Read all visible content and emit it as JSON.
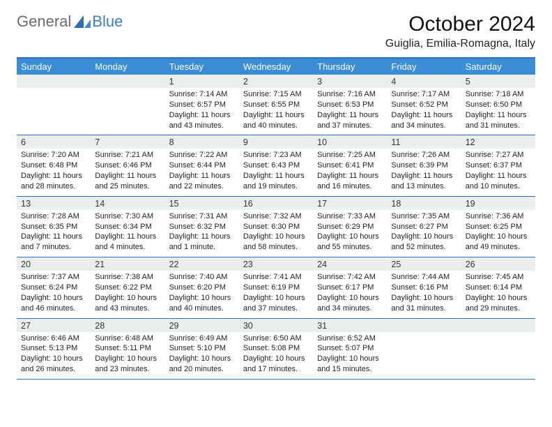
{
  "logo": {
    "text1": "General",
    "text2": "Blue"
  },
  "title": "October 2024",
  "location": "Guiglia, Emilia-Romagna, Italy",
  "colors": {
    "header_bg": "#3a8dd6",
    "border": "#2d6fb0",
    "daynum_bg": "#eceded",
    "text": "#222222",
    "logo_gray": "#6b6b6b",
    "logo_blue": "#3a7fc4"
  },
  "weekdays": [
    "Sunday",
    "Monday",
    "Tuesday",
    "Wednesday",
    "Thursday",
    "Friday",
    "Saturday"
  ],
  "weeks": [
    [
      {
        "n": "",
        "sr": "",
        "ss": "",
        "dl": ""
      },
      {
        "n": "",
        "sr": "",
        "ss": "",
        "dl": ""
      },
      {
        "n": "1",
        "sr": "Sunrise: 7:14 AM",
        "ss": "Sunset: 6:57 PM",
        "dl": "Daylight: 11 hours and 43 minutes."
      },
      {
        "n": "2",
        "sr": "Sunrise: 7:15 AM",
        "ss": "Sunset: 6:55 PM",
        "dl": "Daylight: 11 hours and 40 minutes."
      },
      {
        "n": "3",
        "sr": "Sunrise: 7:16 AM",
        "ss": "Sunset: 6:53 PM",
        "dl": "Daylight: 11 hours and 37 minutes."
      },
      {
        "n": "4",
        "sr": "Sunrise: 7:17 AM",
        "ss": "Sunset: 6:52 PM",
        "dl": "Daylight: 11 hours and 34 minutes."
      },
      {
        "n": "5",
        "sr": "Sunrise: 7:18 AM",
        "ss": "Sunset: 6:50 PM",
        "dl": "Daylight: 11 hours and 31 minutes."
      }
    ],
    [
      {
        "n": "6",
        "sr": "Sunrise: 7:20 AM",
        "ss": "Sunset: 6:48 PM",
        "dl": "Daylight: 11 hours and 28 minutes."
      },
      {
        "n": "7",
        "sr": "Sunrise: 7:21 AM",
        "ss": "Sunset: 6:46 PM",
        "dl": "Daylight: 11 hours and 25 minutes."
      },
      {
        "n": "8",
        "sr": "Sunrise: 7:22 AM",
        "ss": "Sunset: 6:44 PM",
        "dl": "Daylight: 11 hours and 22 minutes."
      },
      {
        "n": "9",
        "sr": "Sunrise: 7:23 AM",
        "ss": "Sunset: 6:43 PM",
        "dl": "Daylight: 11 hours and 19 minutes."
      },
      {
        "n": "10",
        "sr": "Sunrise: 7:25 AM",
        "ss": "Sunset: 6:41 PM",
        "dl": "Daylight: 11 hours and 16 minutes."
      },
      {
        "n": "11",
        "sr": "Sunrise: 7:26 AM",
        "ss": "Sunset: 6:39 PM",
        "dl": "Daylight: 11 hours and 13 minutes."
      },
      {
        "n": "12",
        "sr": "Sunrise: 7:27 AM",
        "ss": "Sunset: 6:37 PM",
        "dl": "Daylight: 11 hours and 10 minutes."
      }
    ],
    [
      {
        "n": "13",
        "sr": "Sunrise: 7:28 AM",
        "ss": "Sunset: 6:35 PM",
        "dl": "Daylight: 11 hours and 7 minutes."
      },
      {
        "n": "14",
        "sr": "Sunrise: 7:30 AM",
        "ss": "Sunset: 6:34 PM",
        "dl": "Daylight: 11 hours and 4 minutes."
      },
      {
        "n": "15",
        "sr": "Sunrise: 7:31 AM",
        "ss": "Sunset: 6:32 PM",
        "dl": "Daylight: 11 hours and 1 minute."
      },
      {
        "n": "16",
        "sr": "Sunrise: 7:32 AM",
        "ss": "Sunset: 6:30 PM",
        "dl": "Daylight: 10 hours and 58 minutes."
      },
      {
        "n": "17",
        "sr": "Sunrise: 7:33 AM",
        "ss": "Sunset: 6:29 PM",
        "dl": "Daylight: 10 hours and 55 minutes."
      },
      {
        "n": "18",
        "sr": "Sunrise: 7:35 AM",
        "ss": "Sunset: 6:27 PM",
        "dl": "Daylight: 10 hours and 52 minutes."
      },
      {
        "n": "19",
        "sr": "Sunrise: 7:36 AM",
        "ss": "Sunset: 6:25 PM",
        "dl": "Daylight: 10 hours and 49 minutes."
      }
    ],
    [
      {
        "n": "20",
        "sr": "Sunrise: 7:37 AM",
        "ss": "Sunset: 6:24 PM",
        "dl": "Daylight: 10 hours and 46 minutes."
      },
      {
        "n": "21",
        "sr": "Sunrise: 7:38 AM",
        "ss": "Sunset: 6:22 PM",
        "dl": "Daylight: 10 hours and 43 minutes."
      },
      {
        "n": "22",
        "sr": "Sunrise: 7:40 AM",
        "ss": "Sunset: 6:20 PM",
        "dl": "Daylight: 10 hours and 40 minutes."
      },
      {
        "n": "23",
        "sr": "Sunrise: 7:41 AM",
        "ss": "Sunset: 6:19 PM",
        "dl": "Daylight: 10 hours and 37 minutes."
      },
      {
        "n": "24",
        "sr": "Sunrise: 7:42 AM",
        "ss": "Sunset: 6:17 PM",
        "dl": "Daylight: 10 hours and 34 minutes."
      },
      {
        "n": "25",
        "sr": "Sunrise: 7:44 AM",
        "ss": "Sunset: 6:16 PM",
        "dl": "Daylight: 10 hours and 31 minutes."
      },
      {
        "n": "26",
        "sr": "Sunrise: 7:45 AM",
        "ss": "Sunset: 6:14 PM",
        "dl": "Daylight: 10 hours and 29 minutes."
      }
    ],
    [
      {
        "n": "27",
        "sr": "Sunrise: 6:46 AM",
        "ss": "Sunset: 5:13 PM",
        "dl": "Daylight: 10 hours and 26 minutes."
      },
      {
        "n": "28",
        "sr": "Sunrise: 6:48 AM",
        "ss": "Sunset: 5:11 PM",
        "dl": "Daylight: 10 hours and 23 minutes."
      },
      {
        "n": "29",
        "sr": "Sunrise: 6:49 AM",
        "ss": "Sunset: 5:10 PM",
        "dl": "Daylight: 10 hours and 20 minutes."
      },
      {
        "n": "30",
        "sr": "Sunrise: 6:50 AM",
        "ss": "Sunset: 5:08 PM",
        "dl": "Daylight: 10 hours and 17 minutes."
      },
      {
        "n": "31",
        "sr": "Sunrise: 6:52 AM",
        "ss": "Sunset: 5:07 PM",
        "dl": "Daylight: 10 hours and 15 minutes."
      },
      {
        "n": "",
        "sr": "",
        "ss": "",
        "dl": ""
      },
      {
        "n": "",
        "sr": "",
        "ss": "",
        "dl": ""
      }
    ]
  ]
}
